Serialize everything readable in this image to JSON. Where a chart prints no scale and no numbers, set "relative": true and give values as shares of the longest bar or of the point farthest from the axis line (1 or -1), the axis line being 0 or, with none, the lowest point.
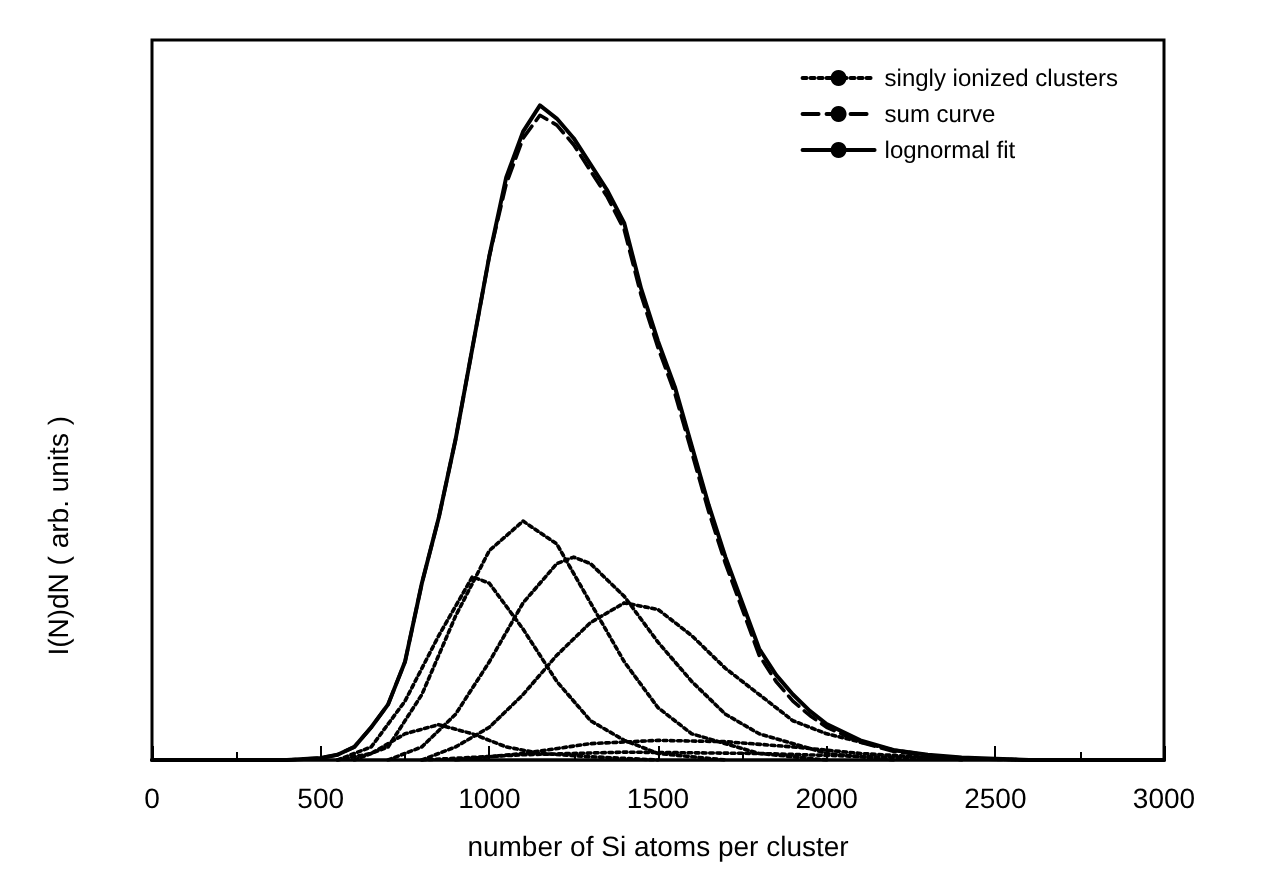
{
  "chart_data": {
    "type": "line",
    "xlabel": "number of Si atoms per cluster",
    "ylabel": "I(N)dN ( arb. units )",
    "relative": true,
    "xlim": [
      0,
      3000
    ],
    "xticks": [
      0,
      500,
      1000,
      1500,
      2000,
      2500,
      3000
    ],
    "legend": "top right",
    "marker": "none",
    "grid": false,
    "series": [
      {
        "name": "singly ionized clusters",
        "color": "#000000",
        "line_style": "dotted",
        "x": [
          600,
          700,
          800,
          900,
          1000,
          1100,
          1200,
          1300,
          1400,
          1500,
          1600,
          1800,
          2000
        ],
        "values": [
          0,
          0.02,
          0.1,
          0.22,
          0.32,
          0.365,
          0.33,
          0.24,
          0.15,
          0.08,
          0.04,
          0.01,
          0
        ]
      },
      {
        "color": "#000000",
        "line_style": "dotted",
        "x": [
          700,
          800,
          900,
          1000,
          1100,
          1200,
          1250,
          1300,
          1400,
          1500,
          1600,
          1700,
          1800,
          2000,
          2200
        ],
        "values": [
          0,
          0.02,
          0.07,
          0.15,
          0.24,
          0.3,
          0.31,
          0.3,
          0.25,
          0.18,
          0.12,
          0.07,
          0.04,
          0.01,
          0
        ]
      },
      {
        "color": "#000000",
        "line_style": "dotted",
        "x": [
          800,
          900,
          1000,
          1100,
          1200,
          1300,
          1400,
          1500,
          1600,
          1700,
          1800,
          1900,
          2000,
          2200,
          2400
        ],
        "values": [
          0,
          0.02,
          0.05,
          0.1,
          0.16,
          0.21,
          0.24,
          0.23,
          0.19,
          0.14,
          0.1,
          0.06,
          0.04,
          0.015,
          0
        ]
      },
      {
        "color": "#000000",
        "line_style": "dotted",
        "x": [
          550,
          650,
          750,
          850,
          950,
          1000,
          1100,
          1200,
          1300,
          1400,
          1500,
          1700
        ],
        "values": [
          0,
          0.02,
          0.09,
          0.19,
          0.28,
          0.27,
          0.2,
          0.12,
          0.06,
          0.03,
          0.01,
          0
        ]
      },
      {
        "color": "#000000",
        "line_style": "dotted",
        "x": [
          550,
          650,
          750,
          850,
          950,
          1050,
          1150,
          1300,
          1500
        ],
        "values": [
          0,
          0.01,
          0.04,
          0.054,
          0.04,
          0.02,
          0.01,
          0.005,
          0
        ]
      },
      {
        "color": "#000000",
        "line_style": "dotted",
        "x": [
          900,
          1100,
          1300,
          1500,
          1700,
          1900,
          2100,
          2300,
          2600
        ],
        "values": [
          0,
          0.01,
          0.025,
          0.03,
          0.028,
          0.02,
          0.01,
          0.004,
          0
        ]
      },
      {
        "color": "#000000",
        "line_style": "dotted",
        "x": [
          800,
          1100,
          1400,
          1800,
          2200,
          2600
        ],
        "values": [
          0,
          0.008,
          0.012,
          0.01,
          0.004,
          0
        ]
      },
      {
        "name": "sum curve",
        "color": "#000000",
        "line_style": "dashed",
        "x": [
          0,
          400,
          500,
          550,
          600,
          650,
          700,
          750,
          800,
          850,
          900,
          950,
          1000,
          1050,
          1100,
          1150,
          1200,
          1250,
          1300,
          1350,
          1400,
          1450,
          1500,
          1550,
          1600,
          1650,
          1700,
          1750,
          1800,
          1850,
          1900,
          1950,
          2000,
          2100,
          2200,
          2300,
          2400,
          2500,
          2600,
          3000
        ],
        "values": [
          0,
          0,
          0.003,
          0.008,
          0.02,
          0.05,
          0.085,
          0.15,
          0.27,
          0.37,
          0.49,
          0.63,
          0.77,
          0.88,
          0.95,
          0.985,
          0.97,
          0.94,
          0.9,
          0.86,
          0.81,
          0.71,
          0.63,
          0.56,
          0.47,
          0.38,
          0.3,
          0.23,
          0.16,
          0.12,
          0.09,
          0.068,
          0.05,
          0.027,
          0.013,
          0.007,
          0.003,
          0.001,
          0,
          0
        ]
      },
      {
        "name": "lognormal fit",
        "color": "#000000",
        "line_style": "solid",
        "x": [
          0,
          400,
          500,
          550,
          600,
          650,
          700,
          750,
          800,
          850,
          900,
          950,
          1000,
          1050,
          1100,
          1150,
          1200,
          1250,
          1300,
          1350,
          1400,
          1450,
          1500,
          1550,
          1600,
          1650,
          1700,
          1750,
          1800,
          1850,
          1900,
          1950,
          2000,
          2100,
          2200,
          2300,
          2400,
          2500,
          2600,
          3000
        ],
        "values": [
          0,
          0,
          0.003,
          0.008,
          0.02,
          0.05,
          0.085,
          0.15,
          0.27,
          0.37,
          0.49,
          0.63,
          0.77,
          0.89,
          0.96,
          1,
          0.98,
          0.95,
          0.91,
          0.87,
          0.82,
          0.72,
          0.64,
          0.57,
          0.48,
          0.39,
          0.31,
          0.24,
          0.17,
          0.13,
          0.1,
          0.075,
          0.055,
          0.03,
          0.015,
          0.008,
          0.004,
          0.002,
          0,
          0
        ]
      }
    ]
  }
}
